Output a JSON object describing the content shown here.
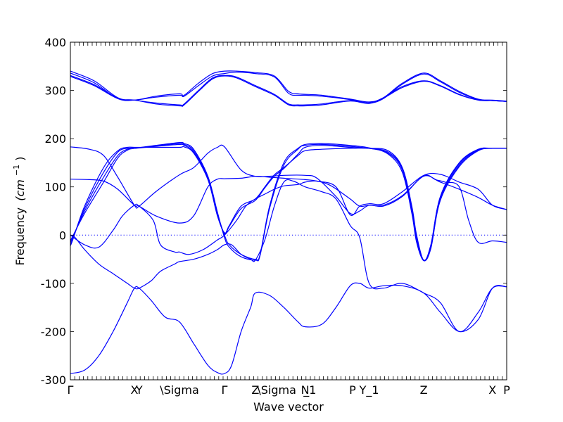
{
  "chart_data": {
    "type": "line",
    "xlabel": "Wave vector",
    "ylabel": "Frequency",
    "ylabel_unit": "(cm",
    "ylabel_sup": "−1",
    "ylabel_close": ")",
    "ylim": [
      -300,
      400
    ],
    "yticks": [
      -300,
      -200,
      -100,
      0,
      100,
      200,
      300,
      400
    ],
    "xlim": [
      0,
      9.2
    ],
    "grid": false,
    "colors": {
      "bands": "#0000ff",
      "zero_line": "#0000ff"
    },
    "high_symmetry_points": [
      {
        "label": "Γ",
        "x": 0.0
      },
      {
        "label": "X",
        "x": 1.35
      },
      {
        "label": "Y",
        "x": 1.45
      },
      {
        "label": "\\Sigma",
        "x": 2.3
      },
      {
        "label": "Γ",
        "x": 3.25
      },
      {
        "label": "Z",
        "x": 3.9
      },
      {
        "label": "\\Sigma",
        "x": 4.35
      },
      {
        "label": "N",
        "x": 4.95
      },
      {
        "label": "_1",
        "x": 5.05
      },
      {
        "label": "P",
        "x": 5.95
      },
      {
        "label": "Y_1",
        "x": 6.3
      },
      {
        "label": "Z",
        "x": 7.45
      },
      {
        "label": "X",
        "x": 8.9
      },
      {
        "label": "P",
        "x": 9.2
      }
    ],
    "series": [
      {
        "x": [
          0,
          0.5,
          1.0,
          1.35,
          1.8,
          2.3,
          2.4,
          2.7,
          3.0,
          3.25,
          3.5,
          3.9,
          4.3,
          4.6,
          4.8,
          4.95,
          5.3,
          5.9,
          6.3,
          6.6,
          7.0,
          7.45,
          7.8,
          8.2,
          8.6,
          8.9,
          9.2
        ],
        "y": [
          340,
          320,
          285,
          280,
          288,
          293,
          290,
          315,
          335,
          340,
          340,
          337,
          330,
          298,
          293,
          292,
          290,
          282,
          276,
          285,
          315,
          336,
          320,
          298,
          282,
          280,
          278
        ]
      },
      {
        "x": [
          0,
          0.5,
          1.0,
          1.35,
          1.8,
          2.3,
          2.4,
          2.7,
          3.0,
          3.25,
          3.5,
          3.9,
          4.3,
          4.6,
          4.8,
          4.95,
          5.3,
          5.9,
          6.3,
          6.6,
          7.0,
          7.45,
          7.8,
          8.2,
          8.6,
          8.9,
          9.2
        ],
        "y": [
          336,
          316,
          283,
          280,
          286,
          290,
          288,
          310,
          330,
          335,
          338,
          335,
          328,
          294,
          290,
          290,
          288,
          281,
          274,
          283,
          313,
          334,
          318,
          296,
          281,
          279,
          277
        ]
      },
      {
        "x": [
          0,
          0.5,
          1.0,
          1.35,
          1.8,
          2.3,
          2.4,
          2.7,
          3.0,
          3.25,
          3.5,
          3.9,
          4.3,
          4.6,
          4.8,
          4.95,
          5.3,
          5.9,
          6.3,
          6.6,
          7.0,
          7.45,
          7.8,
          8.2,
          8.6,
          8.9,
          9.2
        ],
        "y": [
          331,
          312,
          284,
          280,
          274,
          270,
          272,
          300,
          326,
          331,
          328,
          310,
          292,
          272,
          270,
          270,
          272,
          279,
          274,
          285,
          308,
          320,
          310,
          292,
          280,
          279,
          277
        ]
      },
      {
        "x": [
          0,
          0.5,
          1.0,
          1.35,
          1.8,
          2.3,
          2.4,
          2.7,
          3.0,
          3.25,
          3.5,
          3.9,
          4.3,
          4.6,
          4.8,
          4.95,
          5.3,
          5.9,
          6.3,
          6.6,
          7.0,
          7.45,
          7.8,
          8.2,
          8.6,
          8.9,
          9.2
        ],
        "y": [
          329,
          310,
          283,
          280,
          272,
          268,
          270,
          298,
          324,
          330,
          326,
          308,
          290,
          270,
          268,
          268,
          270,
          278,
          273,
          284,
          306,
          319,
          309,
          291,
          280,
          279,
          277
        ]
      },
      {
        "x": [
          0,
          0.05,
          0.3,
          0.7,
          1.0,
          1.2,
          1.35,
          1.8,
          2.3,
          2.4,
          2.6,
          2.9,
          3.1,
          3.25,
          3.35,
          3.6,
          3.9,
          4.1,
          4.3,
          4.5,
          4.8,
          4.95,
          5.3,
          5.9,
          6.3,
          6.7,
          7.0,
          7.2,
          7.3,
          7.45,
          7.6,
          7.8,
          8.2,
          8.6,
          8.9,
          9.2
        ],
        "y": [
          -22,
          -10,
          60,
          140,
          175,
          182,
          182,
          182,
          182,
          183,
          170,
          115,
          40,
          5,
          20,
          60,
          75,
          100,
          125,
          140,
          165,
          175,
          178,
          180,
          180,
          175,
          140,
          60,
          0,
          -52,
          -20,
          80,
          150,
          178,
          180,
          180
        ]
      },
      {
        "x": [
          0,
          0.05,
          0.3,
          0.7,
          1.0,
          1.2,
          1.35,
          1.8,
          2.3,
          2.4,
          2.6,
          2.9,
          3.1,
          3.25,
          3.35,
          3.6,
          3.9,
          4.1,
          4.3,
          4.5,
          4.8,
          4.95,
          5.3,
          5.9,
          6.3,
          6.7,
          7.0,
          7.2,
          7.3,
          7.45,
          7.6,
          7.8,
          8.2,
          8.6,
          8.9,
          9.2
        ],
        "y": [
          -18,
          -8,
          55,
          130,
          172,
          180,
          180,
          184,
          188,
          186,
          172,
          118,
          42,
          3,
          18,
          55,
          72,
          98,
          122,
          138,
          168,
          182,
          186,
          182,
          180,
          172,
          138,
          55,
          -4,
          -53,
          -22,
          78,
          148,
          177,
          180,
          180
        ]
      },
      {
        "x": [
          0,
          0.05,
          0.3,
          0.7,
          1.0,
          1.2,
          1.35,
          1.8,
          2.3,
          2.4,
          2.6,
          2.9,
          3.1,
          3.25,
          3.35,
          3.6,
          3.9,
          4.0,
          4.2,
          4.5,
          4.8,
          4.95,
          5.3,
          5.9,
          6.3,
          6.7,
          7.0,
          7.2,
          7.3,
          7.45,
          7.6,
          7.8,
          8.2,
          8.6,
          8.9,
          9.2
        ],
        "y": [
          -15,
          -5,
          50,
          120,
          165,
          178,
          180,
          185,
          190,
          188,
          175,
          120,
          45,
          0,
          -20,
          -40,
          -50,
          -40,
          60,
          150,
          180,
          186,
          188,
          184,
          180,
          170,
          135,
          50,
          -10,
          -52,
          -25,
          75,
          145,
          176,
          180,
          180
        ]
      },
      {
        "x": [
          0,
          0.05,
          0.3,
          0.7,
          1.0,
          1.2,
          1.35,
          1.8,
          2.3,
          2.4,
          2.6,
          2.9,
          3.1,
          3.25,
          3.35,
          3.6,
          3.9,
          4.0,
          4.2,
          4.5,
          4.8,
          4.95,
          5.3,
          5.9,
          6.3,
          6.7,
          7.0,
          7.2,
          7.3,
          7.45,
          7.6,
          7.8,
          8.2,
          8.6,
          8.9,
          9.2
        ],
        "y": [
          -12,
          -2,
          45,
          110,
          160,
          176,
          180,
          186,
          192,
          190,
          178,
          122,
          48,
          -5,
          -25,
          -45,
          -52,
          -42,
          55,
          145,
          178,
          188,
          190,
          186,
          181,
          168,
          130,
          45,
          -15,
          -53,
          -28,
          72,
          142,
          175,
          180,
          180
        ]
      },
      {
        "x": [
          0,
          0.4,
          0.7,
          1.0,
          1.35,
          1.45,
          1.8,
          2.3,
          2.6,
          2.9,
          3.1,
          3.25,
          3.6,
          3.9,
          4.2,
          4.5,
          4.95,
          5.2,
          5.6,
          5.9,
          6.1,
          6.3,
          6.6,
          7.0,
          7.45,
          7.8,
          8.2,
          8.6,
          8.9,
          9.2
        ],
        "y": [
          183,
          178,
          165,
          120,
          62,
          60,
          90,
          125,
          140,
          170,
          182,
          183,
          135,
          122,
          122,
          124,
          124,
          118,
          80,
          45,
          50,
          62,
          60,
          80,
          122,
          110,
          95,
          78,
          62,
          53
        ]
      },
      {
        "x": [
          0,
          0.4,
          0.7,
          1.0,
          1.35,
          1.45,
          1.8,
          2.3,
          2.6,
          2.9,
          3.1,
          3.25,
          3.6,
          3.9,
          4.2,
          4.5,
          4.95,
          5.2,
          5.6,
          5.9,
          6.1,
          6.3,
          6.6,
          7.0,
          7.45,
          7.8,
          8.2,
          8.6,
          8.9,
          9.2
        ],
        "y": [
          116,
          115,
          112,
          95,
          62,
          60,
          40,
          25,
          40,
          100,
          116,
          117,
          118,
          122,
          120,
          118,
          115,
          112,
          100,
          42,
          60,
          65,
          65,
          90,
          124,
          126,
          110,
          95,
          62,
          53
        ]
      },
      {
        "x": [
          0,
          0.3,
          0.6,
          0.9,
          1.1,
          1.35,
          1.45,
          1.75,
          1.9,
          2.2,
          2.3,
          2.5,
          2.8,
          3.1,
          3.25,
          3.5,
          3.7,
          3.9,
          4.1,
          4.3,
          4.5,
          4.8,
          4.95,
          5.2,
          5.5,
          5.9,
          6.1,
          6.3,
          6.6,
          7.0,
          7.45,
          7.7,
          7.9,
          8.2,
          8.4,
          8.6,
          8.9,
          9.2
        ],
        "y": [
          0,
          -20,
          -25,
          10,
          40,
          62,
          60,
          30,
          -20,
          -35,
          -35,
          -40,
          -30,
          -10,
          0,
          30,
          60,
          75,
          85,
          95,
          102,
          105,
          110,
          112,
          102,
          75,
          60,
          62,
          62,
          82,
          123,
          115,
          110,
          100,
          30,
          -15,
          -12,
          -15
        ]
      },
      {
        "x": [
          0,
          0.1,
          0.3,
          0.6,
          0.9,
          1.2,
          1.35,
          1.45,
          1.7,
          1.9,
          2.2,
          2.3,
          2.6,
          2.9,
          3.1,
          3.25,
          3.4,
          3.6,
          3.8,
          3.9,
          4.1,
          4.3,
          4.5,
          4.7,
          4.95,
          5.3,
          5.6,
          5.9,
          6.1,
          6.3,
          6.6,
          7.0,
          7.45,
          7.8,
          8.2,
          8.6,
          8.9,
          9.2
        ],
        "y": [
          0,
          -5,
          -30,
          -60,
          -80,
          -100,
          -110,
          -110,
          -95,
          -75,
          -60,
          -55,
          -50,
          -40,
          -30,
          -20,
          -20,
          -40,
          -50,
          -52,
          -10,
          60,
          110,
          112,
          100,
          90,
          75,
          20,
          -5,
          -100,
          -110,
          -100,
          -120,
          -140,
          -200,
          -160,
          -110,
          -107
        ]
      },
      {
        "x": [
          0,
          0.3,
          0.6,
          0.9,
          1.2,
          1.35,
          1.45,
          1.7,
          2.0,
          2.3,
          2.6,
          2.9,
          3.1,
          3.25,
          3.4,
          3.6,
          3.8,
          3.9,
          4.2,
          4.5,
          4.8,
          4.95,
          5.3,
          5.6,
          5.9,
          6.1,
          6.3,
          6.6,
          7.0,
          7.45,
          7.8,
          8.2,
          8.6,
          8.9,
          9.2
        ],
        "y": [
          -287,
          -280,
          -250,
          -200,
          -140,
          -110,
          -110,
          -135,
          -170,
          -180,
          -225,
          -270,
          -285,
          -287,
          -270,
          -200,
          -150,
          -120,
          -125,
          -150,
          -180,
          -190,
          -185,
          -150,
          -105,
          -100,
          -110,
          -105,
          -105,
          -120,
          -160,
          -200,
          -175,
          -110,
          -107
        ]
      }
    ]
  }
}
